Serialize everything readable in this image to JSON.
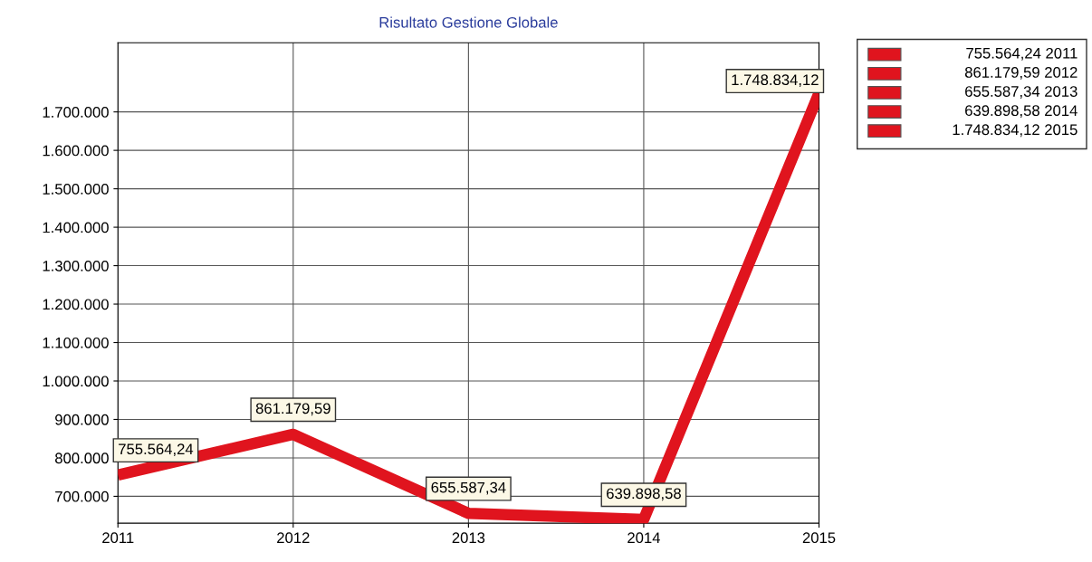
{
  "chart_data": {
    "type": "line",
    "title": "Risultato Gestione Globale",
    "categories": [
      "2011",
      "2012",
      "2013",
      "2014",
      "2015"
    ],
    "series": [
      {
        "color": "#e0141e",
        "values": [
          755564.24,
          861179.59,
          655587.34,
          639898.58,
          1748834.12
        ],
        "value_labels": [
          "755.564,24",
          "861.179,59",
          "655.587,34",
          "639.898,58",
          "1.748.834,12"
        ]
      }
    ],
    "annotations": [
      "755.564,24 2011",
      "861.179,59 2012",
      "655.587,34 2013",
      "639.898,58 2014",
      "1.748.834,12 2015"
    ],
    "ylim": [
      630000,
      1880000
    ],
    "yticks": [
      {
        "value": 700000,
        "label": "700.000"
      },
      {
        "value": 800000,
        "label": "800.000"
      },
      {
        "value": 900000,
        "label": "900.000"
      },
      {
        "value": 1000000,
        "label": "1.000.000"
      },
      {
        "value": 1100000,
        "label": "1.100.000"
      },
      {
        "value": 1200000,
        "label": "1.200.000"
      },
      {
        "value": 1300000,
        "label": "1.300.000"
      },
      {
        "value": 1400000,
        "label": "1.400.000"
      },
      {
        "value": 1500000,
        "label": "1.500.000"
      },
      {
        "value": 1600000,
        "label": "1.600.000"
      },
      {
        "value": 1700000,
        "label": "1.700.000"
      }
    ],
    "grid": true,
    "marker": "none",
    "line_style": "solid"
  }
}
